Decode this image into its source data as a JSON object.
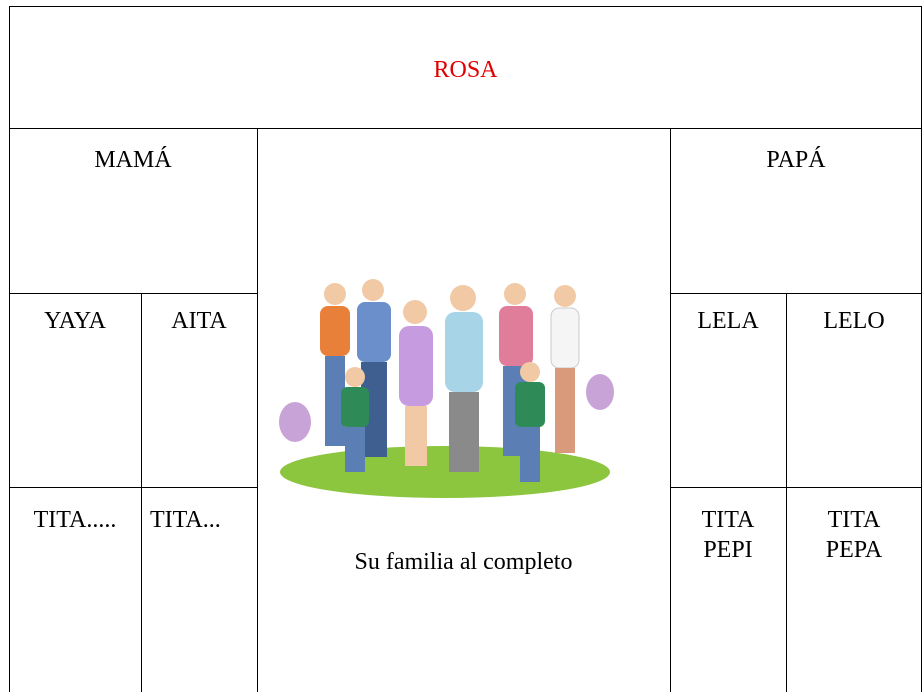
{
  "table": {
    "title": "ROSA",
    "left_parent": "MAMÁ",
    "right_parent": "PAPÁ",
    "grandparents": [
      "YAYA",
      "AITA",
      "LELA",
      "LELO"
    ],
    "aunts": [
      [
        "TITA....."
      ],
      [
        "TITA..."
      ],
      [
        "TITA",
        "PEPI"
      ],
      [
        "TITA",
        "PEPA"
      ]
    ],
    "caption": "Su familia al completo"
  }
}
